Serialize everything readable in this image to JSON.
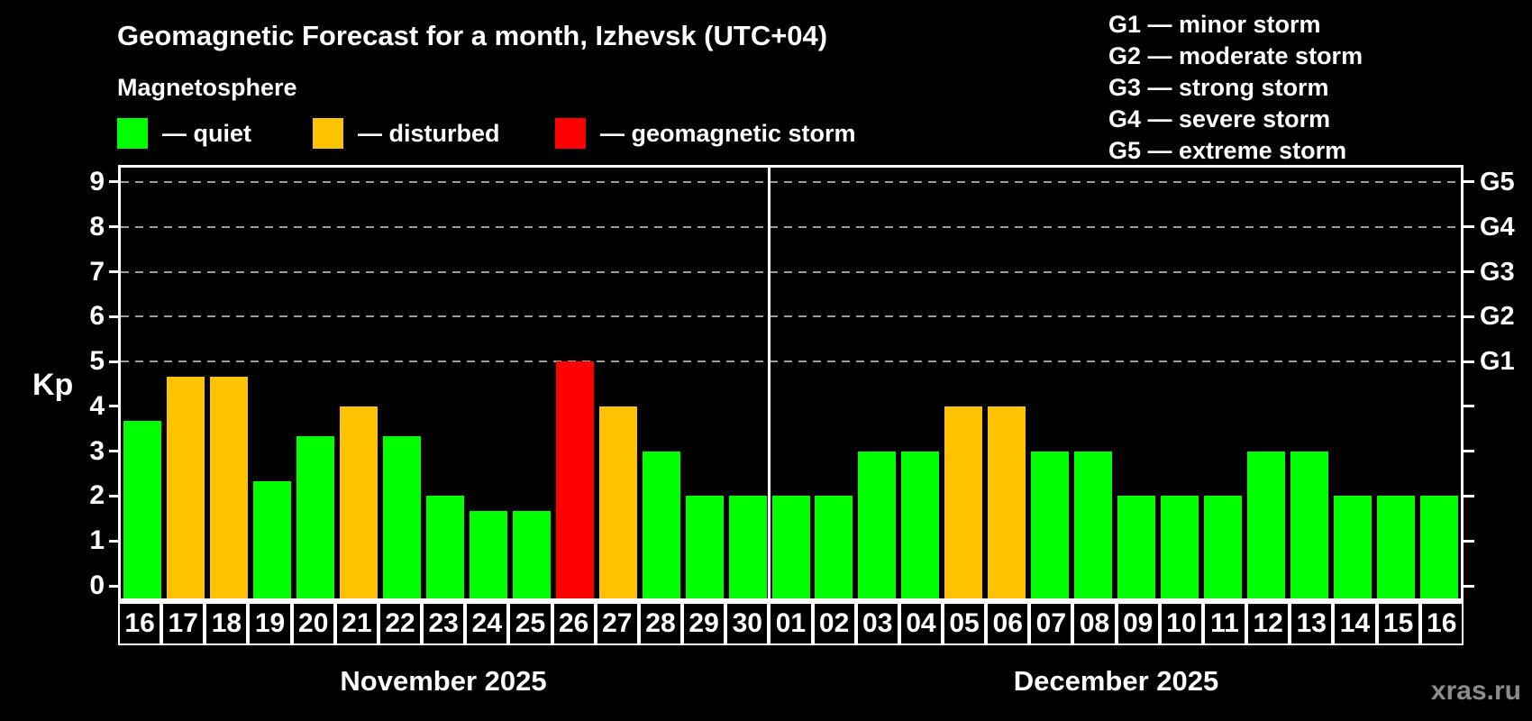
{
  "chart_data": {
    "type": "bar",
    "title": "Geomagnetic Forecast for a month, Izhevsk (UTC+04)",
    "subtitle": "Magnetosphere",
    "ylabel": "Kp",
    "ylim": [
      0,
      9.4
    ],
    "yticks": [
      0,
      1,
      2,
      3,
      4,
      5,
      6,
      7,
      8,
      9
    ],
    "grid": "dashed horizontal lines at Kp 5-9",
    "legend_position": "top-left",
    "legend": [
      {
        "name": "quiet",
        "label": "— quiet",
        "color": "#00ff00"
      },
      {
        "name": "disturbed",
        "label": "— disturbed",
        "color": "#ffc200"
      },
      {
        "name": "storm",
        "label": "— geomagnetic storm",
        "color": "#ff0000"
      }
    ],
    "status_colors": {
      "quiet": "#00ff00",
      "disturbed": "#ffc200",
      "storm": "#ff0000"
    },
    "right_axis_ticks": [
      {
        "kp": 5,
        "label": "G1"
      },
      {
        "kp": 6,
        "label": "G2"
      },
      {
        "kp": 7,
        "label": "G3"
      },
      {
        "kp": 8,
        "label": "G4"
      },
      {
        "kp": 9,
        "label": "G5"
      }
    ],
    "gridlines_at": [
      5,
      6,
      7,
      8,
      9
    ],
    "g_legend": [
      "G1 — minor storm",
      "G2 — moderate storm",
      "G3 — strong storm",
      "G4 — severe storm",
      "G5 — extreme storm"
    ],
    "months": [
      {
        "label": "November 2025",
        "days": [
          {
            "day": "16",
            "kp": 3.67,
            "status": "quiet"
          },
          {
            "day": "17",
            "kp": 4.67,
            "status": "disturbed"
          },
          {
            "day": "18",
            "kp": 4.67,
            "status": "disturbed"
          },
          {
            "day": "19",
            "kp": 2.33,
            "status": "quiet"
          },
          {
            "day": "20",
            "kp": 3.33,
            "status": "quiet"
          },
          {
            "day": "21",
            "kp": 4,
            "status": "disturbed"
          },
          {
            "day": "22",
            "kp": 3.33,
            "status": "quiet"
          },
          {
            "day": "23",
            "kp": 2,
            "status": "quiet"
          },
          {
            "day": "24",
            "kp": 1.67,
            "status": "quiet"
          },
          {
            "day": "25",
            "kp": 1.67,
            "status": "quiet"
          },
          {
            "day": "26",
            "kp": 5,
            "status": "storm"
          },
          {
            "day": "27",
            "kp": 4,
            "status": "disturbed"
          },
          {
            "day": "28",
            "kp": 3,
            "status": "quiet"
          },
          {
            "day": "29",
            "kp": 2,
            "status": "quiet"
          },
          {
            "day": "30",
            "kp": 2,
            "status": "quiet"
          }
        ]
      },
      {
        "label": "December 2025",
        "days": [
          {
            "day": "01",
            "kp": 2,
            "status": "quiet"
          },
          {
            "day": "02",
            "kp": 2,
            "status": "quiet"
          },
          {
            "day": "03",
            "kp": 3,
            "status": "quiet"
          },
          {
            "day": "04",
            "kp": 3,
            "status": "quiet"
          },
          {
            "day": "05",
            "kp": 4,
            "status": "disturbed"
          },
          {
            "day": "06",
            "kp": 4,
            "status": "disturbed"
          },
          {
            "day": "07",
            "kp": 3,
            "status": "quiet"
          },
          {
            "day": "08",
            "kp": 3,
            "status": "quiet"
          },
          {
            "day": "09",
            "kp": 2,
            "status": "quiet"
          },
          {
            "day": "10",
            "kp": 2,
            "status": "quiet"
          },
          {
            "day": "11",
            "kp": 2,
            "status": "quiet"
          },
          {
            "day": "12",
            "kp": 3,
            "status": "quiet"
          },
          {
            "day": "13",
            "kp": 3,
            "status": "quiet"
          },
          {
            "day": "14",
            "kp": 2,
            "status": "quiet"
          },
          {
            "day": "15",
            "kp": 2,
            "status": "quiet"
          },
          {
            "day": "16",
            "kp": 2,
            "status": "quiet"
          }
        ]
      }
    ],
    "watermark": "xras.ru"
  }
}
